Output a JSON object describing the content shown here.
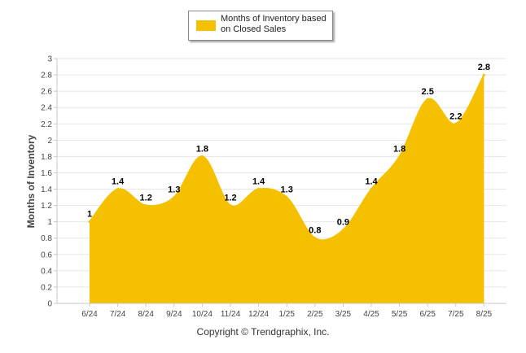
{
  "chart_data": {
    "type": "area",
    "categories": [
      "6/24",
      "7/24",
      "8/24",
      "9/24",
      "10/24",
      "11/24",
      "12/24",
      "1/25",
      "2/25",
      "3/25",
      "4/25",
      "5/25",
      "6/25",
      "7/25",
      "8/25"
    ],
    "series": [
      {
        "name": "Months of Inventory based on Closed Sales",
        "values": [
          1,
          1.4,
          1.2,
          1.3,
          1.8,
          1.2,
          1.4,
          1.3,
          0.8,
          0.9,
          1.4,
          1.8,
          2.5,
          2.2,
          2.8
        ],
        "data_labels": [
          "1",
          "1.4",
          "1.2",
          "1.3",
          "1.8",
          "1.2",
          "1.4",
          "1.3",
          "0.8",
          "0.9",
          "1.4",
          "1.8",
          "2.5",
          "2.2",
          "2.8"
        ]
      }
    ],
    "ylabel": "Months of Inventory",
    "xlabel": "",
    "ylim": [
      0,
      3
    ],
    "y_ticks": [
      "0",
      "0.2",
      "0.4",
      "0.6",
      "0.8",
      "1",
      "1.2",
      "1.4",
      "1.6",
      "1.8",
      "2",
      "2.2",
      "2.4",
      "2.6",
      "2.8",
      "3"
    ],
    "grid": true,
    "legend_position": "top-center",
    "smooth": true,
    "colors": {
      "area": "#F5C000",
      "grid": "#e6e6e6",
      "axis": "#c8c8c8",
      "label": "#000000",
      "tick": "#444444"
    }
  },
  "legend": {
    "line1": "Months of Inventory based",
    "line2": "on Closed Sales"
  },
  "footer": {
    "copyright": "Copyright © Trendgraphix, Inc."
  }
}
